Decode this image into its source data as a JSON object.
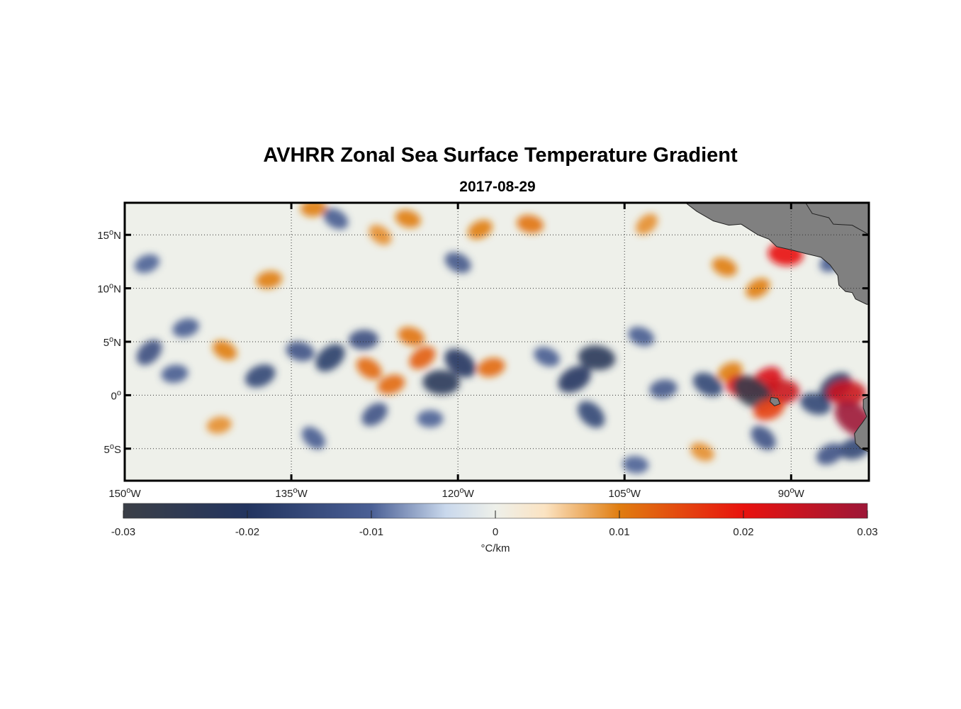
{
  "title": "AVHRR Zonal Sea Surface Temperature Gradient",
  "subtitle": "2017-08-29",
  "map": {
    "lon_range": [
      -150,
      -83
    ],
    "lat_range": [
      -8,
      18
    ],
    "lon_ticks": [
      {
        "value": -150,
        "deg": "150",
        "hem": "W"
      },
      {
        "value": -135,
        "deg": "135",
        "hem": "W"
      },
      {
        "value": -120,
        "deg": "120",
        "hem": "W"
      },
      {
        "value": -105,
        "deg": "105",
        "hem": "W"
      },
      {
        "value": -90,
        "deg": "90",
        "hem": "W"
      }
    ],
    "lat_ticks": [
      {
        "value": 15,
        "deg": "15",
        "hem": "N"
      },
      {
        "value": 10,
        "deg": "10",
        "hem": "N"
      },
      {
        "value": 5,
        "deg": "5",
        "hem": "N"
      },
      {
        "value": 0,
        "deg": "0",
        "hem": ""
      },
      {
        "value": -5,
        "deg": "5",
        "hem": "S"
      }
    ],
    "grid": "dotted",
    "land_color": "#808080",
    "land_shapes": [
      {
        "name": "central-america",
        "points": [
          [
            -103.0,
            18
          ],
          [
            -99.5,
            18
          ],
          [
            -98.5,
            17.2
          ],
          [
            -97.0,
            16.3
          ],
          [
            -95.6,
            15.9
          ],
          [
            -94.5,
            16.0
          ],
          [
            -93.0,
            15.0
          ],
          [
            -92.0,
            14.6
          ],
          [
            -91.3,
            13.9
          ],
          [
            -90.0,
            13.6
          ],
          [
            -88.5,
            13.2
          ],
          [
            -87.3,
            12.9
          ],
          [
            -86.5,
            12.2
          ],
          [
            -85.8,
            11.2
          ],
          [
            -85.7,
            10.3
          ],
          [
            -85.1,
            9.7
          ],
          [
            -84.5,
            9.6
          ],
          [
            -84.2,
            9.0
          ],
          [
            -83.2,
            8.5
          ],
          [
            -83,
            8.5
          ],
          [
            -83,
            18
          ]
        ]
      },
      {
        "name": "mexico-inland-notch",
        "points": [
          [
            -88.7,
            18
          ],
          [
            -88.1,
            17.0
          ],
          [
            -86.6,
            16.6
          ],
          [
            -86.2,
            16.0
          ],
          [
            -84.5,
            15.9
          ],
          [
            -83.3,
            15.2
          ],
          [
            -83,
            15.0
          ],
          [
            -83,
            18
          ]
        ]
      },
      {
        "name": "galapagos",
        "points": [
          [
            -91.8,
            -0.2
          ],
          [
            -91.2,
            -0.3
          ],
          [
            -91.0,
            -0.8
          ],
          [
            -91.5,
            -1.0
          ],
          [
            -91.9,
            -0.6
          ]
        ]
      },
      {
        "name": "south-america",
        "points": [
          [
            -83,
            -0.1
          ],
          [
            -83.5,
            -0.4
          ],
          [
            -83.5,
            -1.2
          ],
          [
            -83.2,
            -2.0
          ],
          [
            -83.6,
            -2.6
          ],
          [
            -83.9,
            -3.0
          ],
          [
            -84.3,
            -3.6
          ],
          [
            -84.2,
            -4.5
          ],
          [
            -83.7,
            -5.0
          ],
          [
            -83,
            -5.3
          ]
        ]
      }
    ],
    "anomalies": [
      {
        "lon": -147.8,
        "lat": 4.0,
        "value": -0.014
      },
      {
        "lon": -145.5,
        "lat": 2.0,
        "value": -0.011
      },
      {
        "lon": -141.0,
        "lat": 4.2,
        "value": 0.01
      },
      {
        "lon": -137.8,
        "lat": 1.8,
        "value": -0.016
      },
      {
        "lon": -134.2,
        "lat": 4.1,
        "value": -0.013
      },
      {
        "lon": -131.5,
        "lat": 3.5,
        "value": -0.018
      },
      {
        "lon": -128.5,
        "lat": 5.2,
        "value": -0.014
      },
      {
        "lon": -128.0,
        "lat": 2.5,
        "value": 0.012
      },
      {
        "lon": -126.0,
        "lat": 1.0,
        "value": 0.012
      },
      {
        "lon": -124.2,
        "lat": 5.5,
        "value": 0.011
      },
      {
        "lon": -123.2,
        "lat": 3.5,
        "value": 0.013
      },
      {
        "lon": -121.5,
        "lat": 1.2,
        "value": -0.022
      },
      {
        "lon": -119.8,
        "lat": 3.0,
        "value": -0.02
      },
      {
        "lon": -117.0,
        "lat": 2.6,
        "value": 0.012
      },
      {
        "lon": -112.0,
        "lat": 3.6,
        "value": -0.011
      },
      {
        "lon": -109.5,
        "lat": 1.5,
        "value": -0.02
      },
      {
        "lon": -107.5,
        "lat": 3.5,
        "value": -0.022
      },
      {
        "lon": -108.0,
        "lat": -1.8,
        "value": -0.016
      },
      {
        "lon": -101.5,
        "lat": 0.6,
        "value": -0.012
      },
      {
        "lon": -97.5,
        "lat": 1.0,
        "value": -0.016
      },
      {
        "lon": -95.5,
        "lat": 2.2,
        "value": 0.01
      },
      {
        "lon": -94.3,
        "lat": 0.8,
        "value": 0.02
      },
      {
        "lon": -92.3,
        "lat": 1.2,
        "value": 0.022
      },
      {
        "lon": -91.0,
        "lat": 0.3,
        "value": 0.024
      },
      {
        "lon": -93.5,
        "lat": 0.3,
        "value": -0.028
      },
      {
        "lon": -92.0,
        "lat": -1.3,
        "value": 0.016
      },
      {
        "lon": -87.8,
        "lat": -0.8,
        "value": -0.016
      },
      {
        "lon": -86.0,
        "lat": 0.8,
        "value": -0.02
      },
      {
        "lon": -85.0,
        "lat": 0.2,
        "value": 0.024
      },
      {
        "lon": -84.3,
        "lat": -2.2,
        "value": 0.03
      },
      {
        "lon": -84.3,
        "lat": -5.0,
        "value": -0.016
      },
      {
        "lon": -96.0,
        "lat": 12.0,
        "value": 0.01
      },
      {
        "lon": -93.0,
        "lat": 10.0,
        "value": 0.01
      },
      {
        "lon": -90.5,
        "lat": 13.2,
        "value": 0.02
      },
      {
        "lon": -92.5,
        "lat": -4.0,
        "value": -0.013
      },
      {
        "lon": -137.0,
        "lat": 10.8,
        "value": 0.01
      },
      {
        "lon": -120.0,
        "lat": 12.4,
        "value": -0.012
      },
      {
        "lon": -118.0,
        "lat": 15.5,
        "value": 0.01
      },
      {
        "lon": -113.5,
        "lat": 16.0,
        "value": 0.011
      },
      {
        "lon": -103.0,
        "lat": 16.0,
        "value": 0.009
      },
      {
        "lon": -133.0,
        "lat": 17.5,
        "value": 0.01
      },
      {
        "lon": -131.0,
        "lat": 16.5,
        "value": -0.011
      },
      {
        "lon": -148.0,
        "lat": 12.3,
        "value": -0.01
      },
      {
        "lon": -124.5,
        "lat": 16.5,
        "value": 0.01
      },
      {
        "lon": -127.5,
        "lat": -1.8,
        "value": -0.013
      },
      {
        "lon": -122.5,
        "lat": -2.2,
        "value": -0.01
      },
      {
        "lon": -127.0,
        "lat": 15.0,
        "value": 0.009
      },
      {
        "lon": -144.5,
        "lat": 6.3,
        "value": -0.011
      },
      {
        "lon": -103.5,
        "lat": 5.5,
        "value": -0.011
      },
      {
        "lon": -86.3,
        "lat": 12.5,
        "value": -0.011
      },
      {
        "lon": -104.0,
        "lat": -6.5,
        "value": -0.01
      },
      {
        "lon": -133.0,
        "lat": -4.0,
        "value": -0.011
      },
      {
        "lon": -141.5,
        "lat": -2.8,
        "value": 0.009
      },
      {
        "lon": -98.0,
        "lat": -5.3,
        "value": 0.009
      },
      {
        "lon": -86.5,
        "lat": -5.5,
        "value": -0.013
      }
    ]
  },
  "colorbar": {
    "label": "°C/km",
    "min": -0.03,
    "max": 0.03,
    "ticks": [
      {
        "value": -0.03,
        "label": "-0.03"
      },
      {
        "value": -0.02,
        "label": "-0.02"
      },
      {
        "value": -0.01,
        "label": "-0.01"
      },
      {
        "value": 0,
        "label": "0"
      },
      {
        "value": 0.01,
        "label": "0.01"
      },
      {
        "value": 0.02,
        "label": "0.02"
      },
      {
        "value": 0.03,
        "label": "0.03"
      }
    ],
    "stops": [
      {
        "value": -0.03,
        "color": "#3b3f47"
      },
      {
        "value": -0.02,
        "color": "#22345f"
      },
      {
        "value": -0.01,
        "color": "#4a5f95"
      },
      {
        "value": -0.004,
        "color": "#c9d8ec"
      },
      {
        "value": 0,
        "color": "#eef0ea"
      },
      {
        "value": 0.004,
        "color": "#fbe3c2"
      },
      {
        "value": 0.01,
        "color": "#e07d10"
      },
      {
        "value": 0.02,
        "color": "#e8120e"
      },
      {
        "value": 0.03,
        "color": "#9d1738"
      }
    ]
  }
}
